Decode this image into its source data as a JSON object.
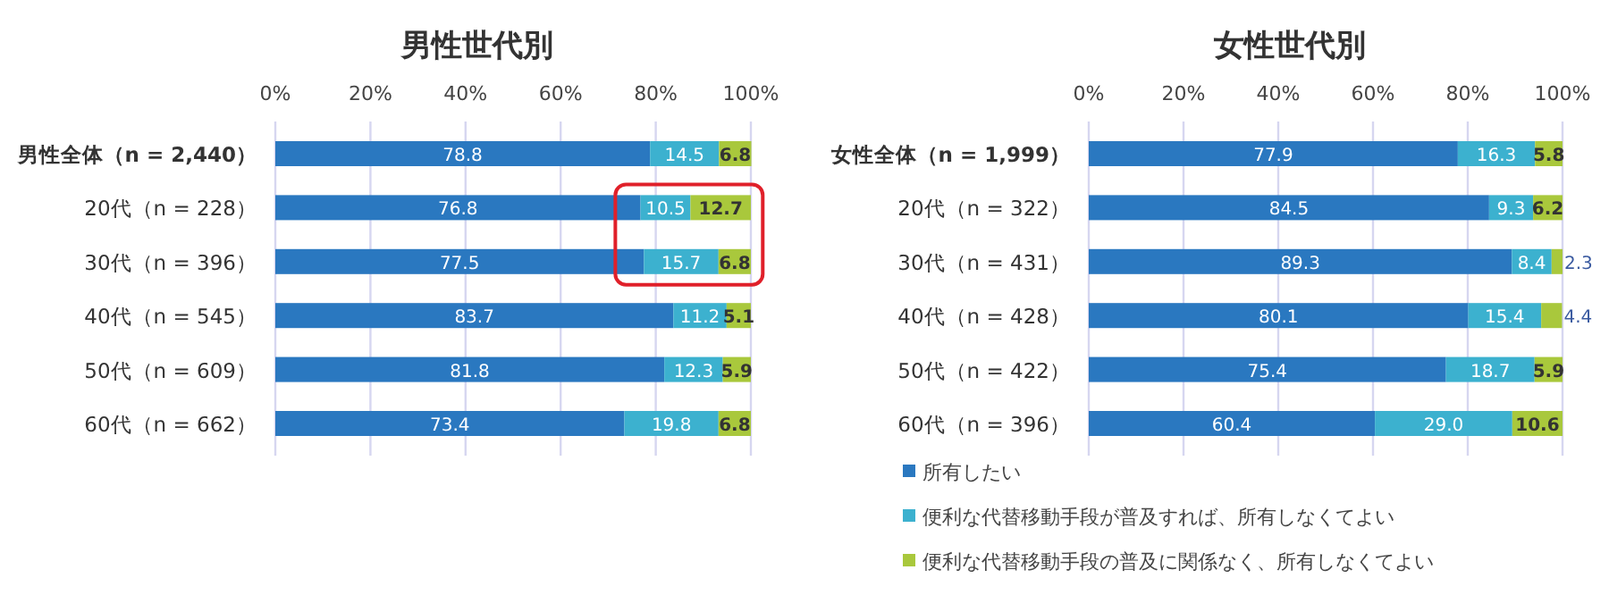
{
  "chart_data": [
    {
      "type": "bar",
      "orientation": "horizontal",
      "stacked": true,
      "title": "男性世代別",
      "categories": [
        "男性全体（n = 2,440）",
        "20代（n = 228）",
        "30代（n = 396）",
        "40代（n = 545）",
        "50代（n = 609）",
        "60代（n = 662）"
      ],
      "series": [
        {
          "color": "#2a78c0",
          "values": [
            78.8,
            76.8,
            77.5,
            83.7,
            81.8,
            73.4
          ],
          "value_labels": [
            "78.8",
            "76.8",
            "77.5",
            "83.7",
            "81.8",
            "73.4"
          ]
        },
        {
          "color": "#3cb1cf",
          "values": [
            14.5,
            10.5,
            15.7,
            11.2,
            12.3,
            19.8
          ],
          "value_labels": [
            "14.5",
            "10.5",
            "15.7",
            "11.2",
            "12.3",
            "19.8"
          ]
        },
        {
          "color": "#a9c83c",
          "values": [
            6.8,
            12.7,
            6.8,
            5.1,
            5.9,
            6.8
          ],
          "value_labels": [
            "6.8",
            "12.7",
            "6.8",
            "5.1",
            "5.9",
            "6.8"
          ]
        }
      ],
      "xlim": [
        0,
        100
      ],
      "xticks": [
        {
          "value": 0,
          "label": "0%"
        },
        {
          "value": 20,
          "label": "20%"
        },
        {
          "value": 40,
          "label": "40%"
        },
        {
          "value": 60,
          "label": "60%"
        },
        {
          "value": 80,
          "label": "80%"
        },
        {
          "value": 100,
          "label": "100%"
        }
      ],
      "grid": "x"
    },
    {
      "type": "bar",
      "orientation": "horizontal",
      "stacked": true,
      "title": "女性世代別",
      "categories": [
        "女性全体（n = 1,999）",
        "20代（n = 322）",
        "30代（n = 431）",
        "40代（n = 428）",
        "50代（n = 422）",
        "60代（n = 396）"
      ],
      "series": [
        {
          "name": "所有したい",
          "color": "#2a78c0",
          "values": [
            77.9,
            84.5,
            89.3,
            80.1,
            75.4,
            60.4
          ],
          "value_labels": [
            "77.9",
            "84.5",
            "89.3",
            "80.1",
            "75.4",
            "60.4"
          ]
        },
        {
          "name": "便利な代替移動手段が普及すれば、所有しなくてよい",
          "color": "#3cb1cf",
          "values": [
            16.3,
            9.3,
            8.4,
            15.4,
            18.7,
            29.0
          ],
          "value_labels": [
            "16.3",
            "9.3",
            "8.4",
            "15.4",
            "18.7",
            "29.0"
          ]
        },
        {
          "name": "便利な代替移動手段の普及に関係なく、所有しなくてよい",
          "color": "#a9c83c",
          "values": [
            5.8,
            6.2,
            2.3,
            4.4,
            5.9,
            10.6
          ],
          "value_labels": [
            "5.8",
            "6.2",
            "2.3",
            "4.4",
            "5.9",
            "10.6"
          ]
        }
      ],
      "xlim": [
        0,
        100
      ],
      "xticks": [
        {
          "value": 0,
          "label": "0%"
        },
        {
          "value": 20,
          "label": "20%"
        },
        {
          "value": 40,
          "label": "40%"
        },
        {
          "value": 60,
          "label": "60%"
        },
        {
          "value": 80,
          "label": "80%"
        },
        {
          "value": 100,
          "label": "100%"
        }
      ],
      "grid": "x",
      "legend": "bottom"
    }
  ]
}
